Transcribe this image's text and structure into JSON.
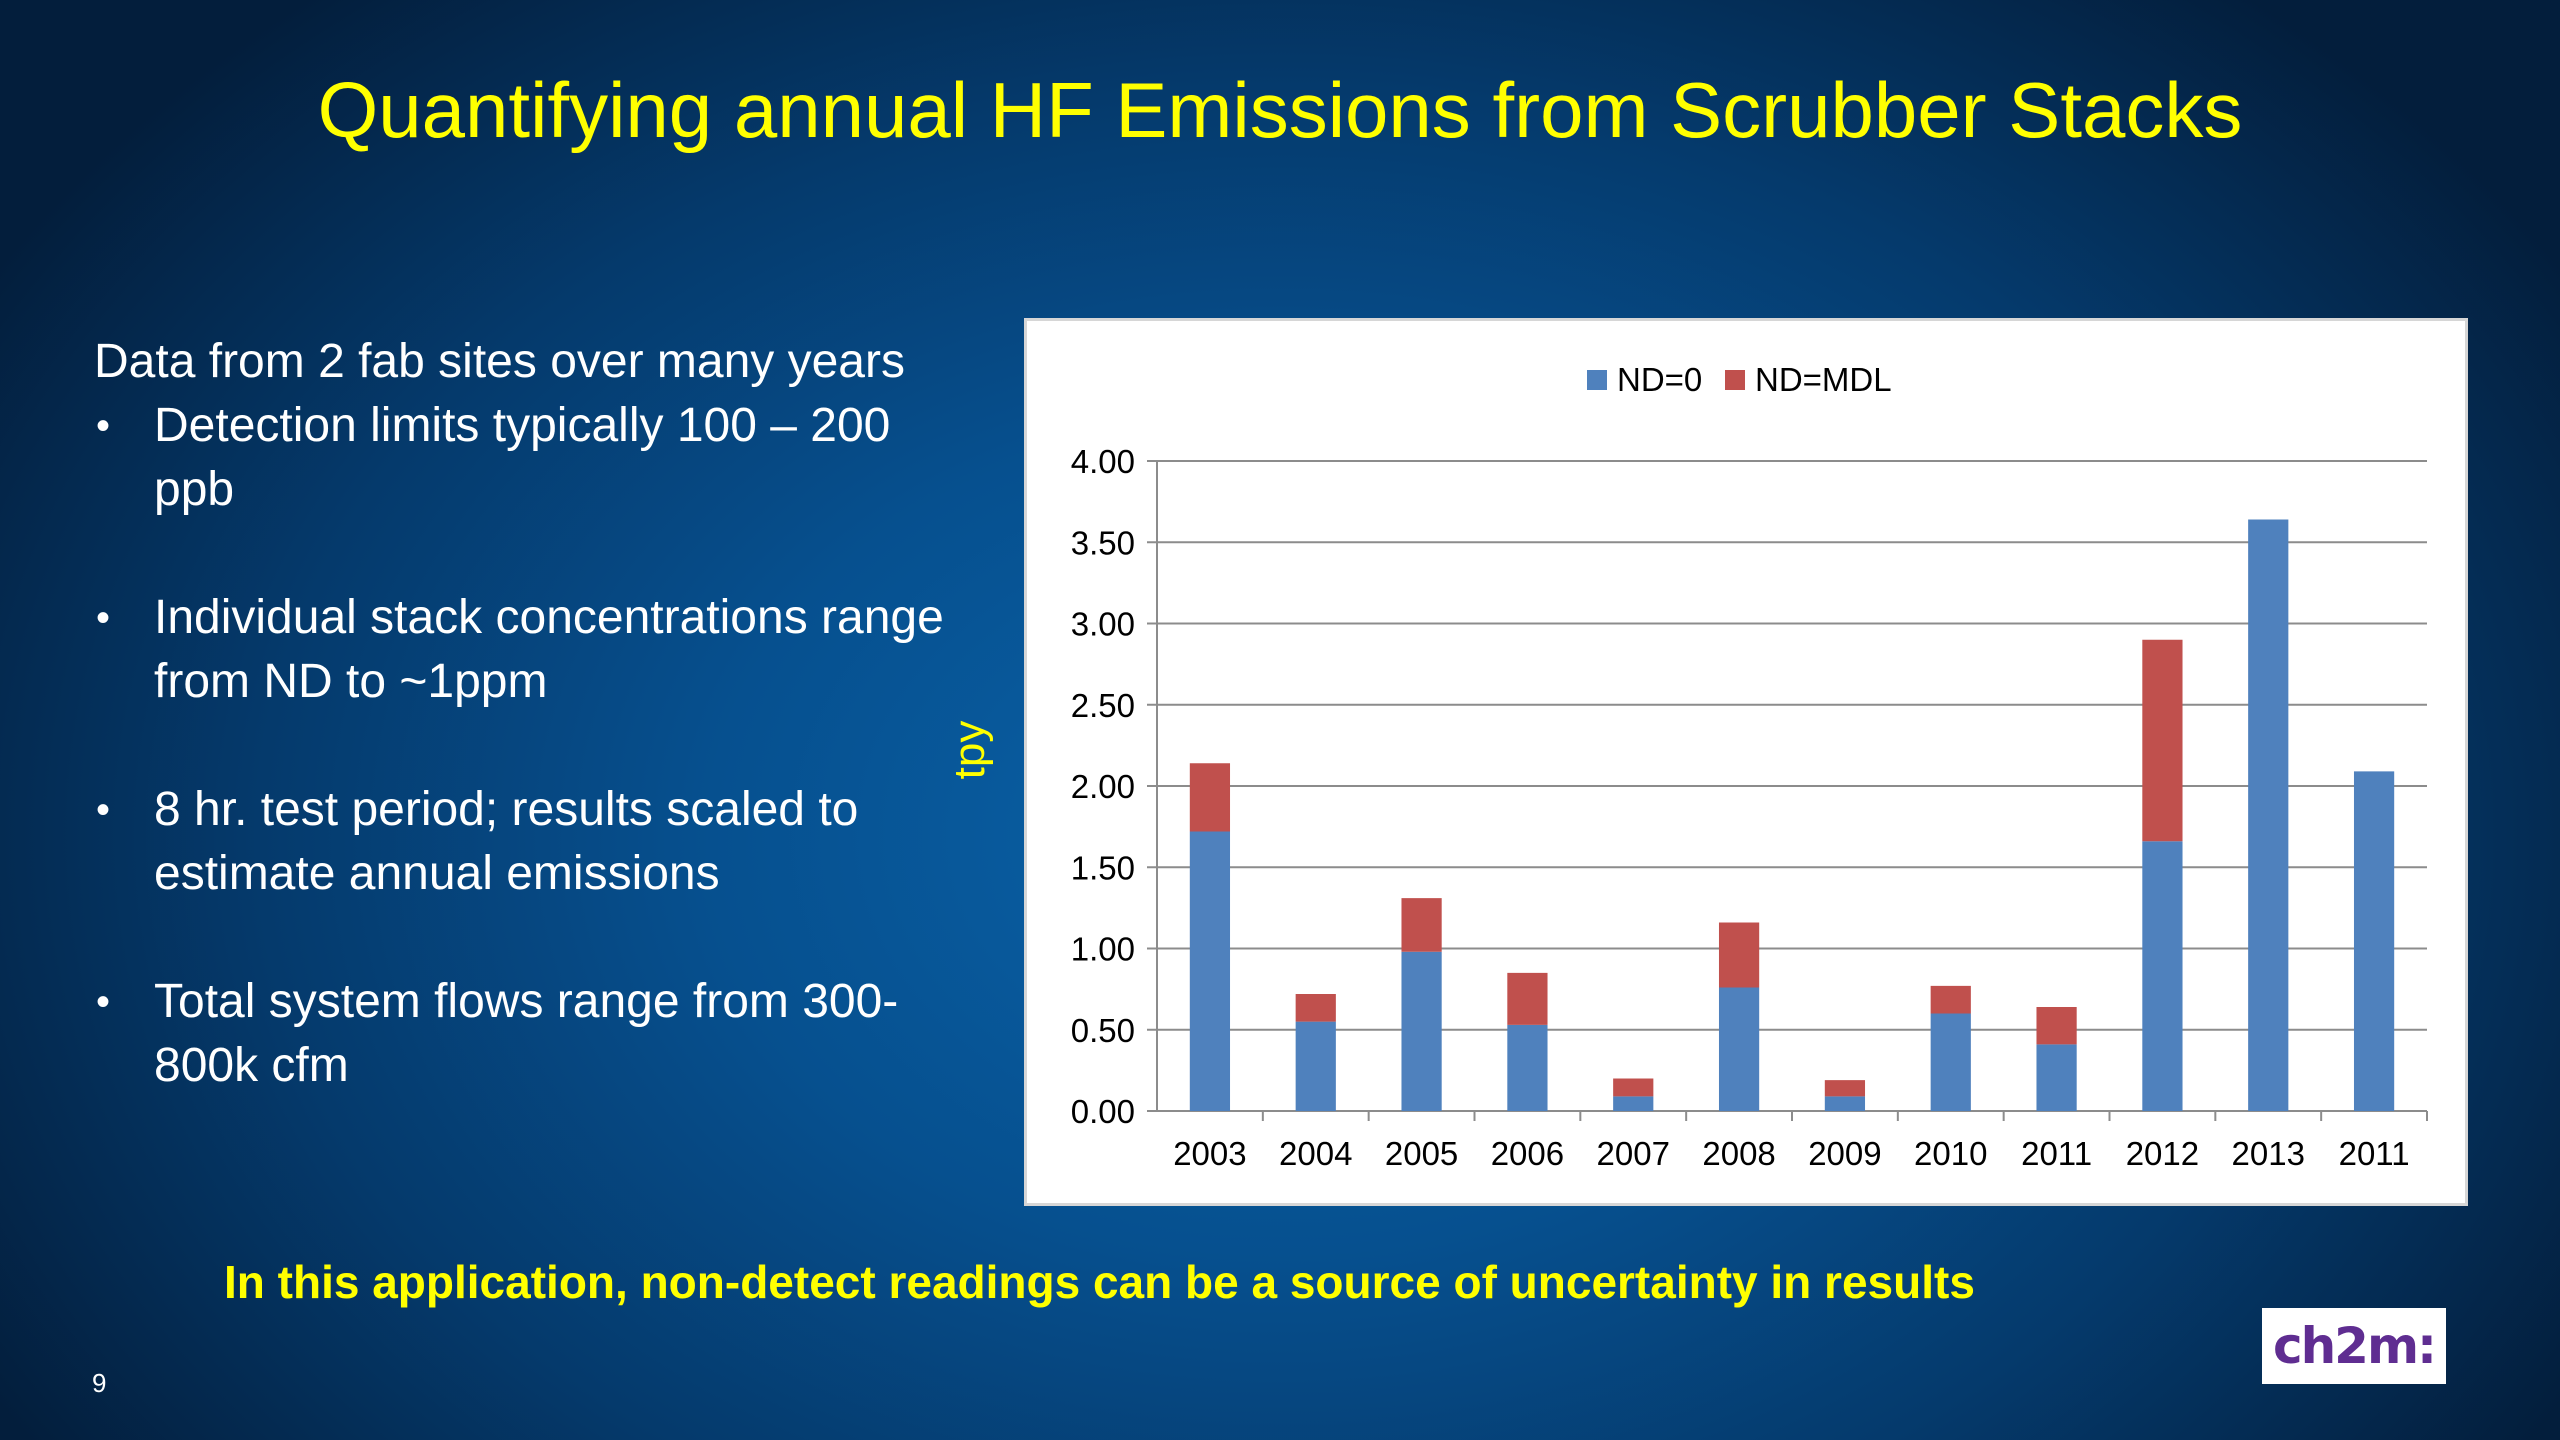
{
  "slide": {
    "title": "Quantifying annual HF Emissions from Scrubber Stacks",
    "intro": "Data from 2 fab sites over many years",
    "bullets": [
      "Detection limits typically 100 – 200 ppb",
      "Individual stack concentrations range from ND to ~1ppm",
      "8 hr. test period; results scaled to estimate annual emissions",
      "Total system flows range from 300-800k cfm"
    ],
    "bullet_glyph": "•",
    "footer_note": "In this application, non-detect readings can be a source of uncertainty in results",
    "page_number": "9",
    "logo_text": "ch2m:"
  },
  "chart_data": {
    "type": "bar",
    "stacked": true,
    "title": "",
    "xlabel": "",
    "ylabel": "tpy",
    "categories": [
      "2003",
      "2004",
      "2005",
      "2006",
      "2007",
      "2008",
      "2009",
      "2010",
      "2011",
      "2012",
      "2013",
      "2011"
    ],
    "series": [
      {
        "name": "ND=0",
        "color": "#4f81bd",
        "values": [
          1.72,
          0.55,
          0.98,
          0.53,
          0.09,
          0.76,
          0.09,
          0.6,
          0.41,
          1.66,
          3.64,
          2.09
        ]
      },
      {
        "name": "ND=MDL",
        "color": "#c0504d",
        "values": [
          0.42,
          0.17,
          0.33,
          0.32,
          0.11,
          0.4,
          0.1,
          0.17,
          0.23,
          1.24,
          0.0,
          0.0
        ]
      }
    ],
    "ylim": [
      0,
      4
    ],
    "yticks": [
      "0.00",
      "0.50",
      "1.00",
      "1.50",
      "2.00",
      "2.50",
      "3.00",
      "3.50",
      "4.00"
    ],
    "grid": true,
    "legend": "top"
  }
}
